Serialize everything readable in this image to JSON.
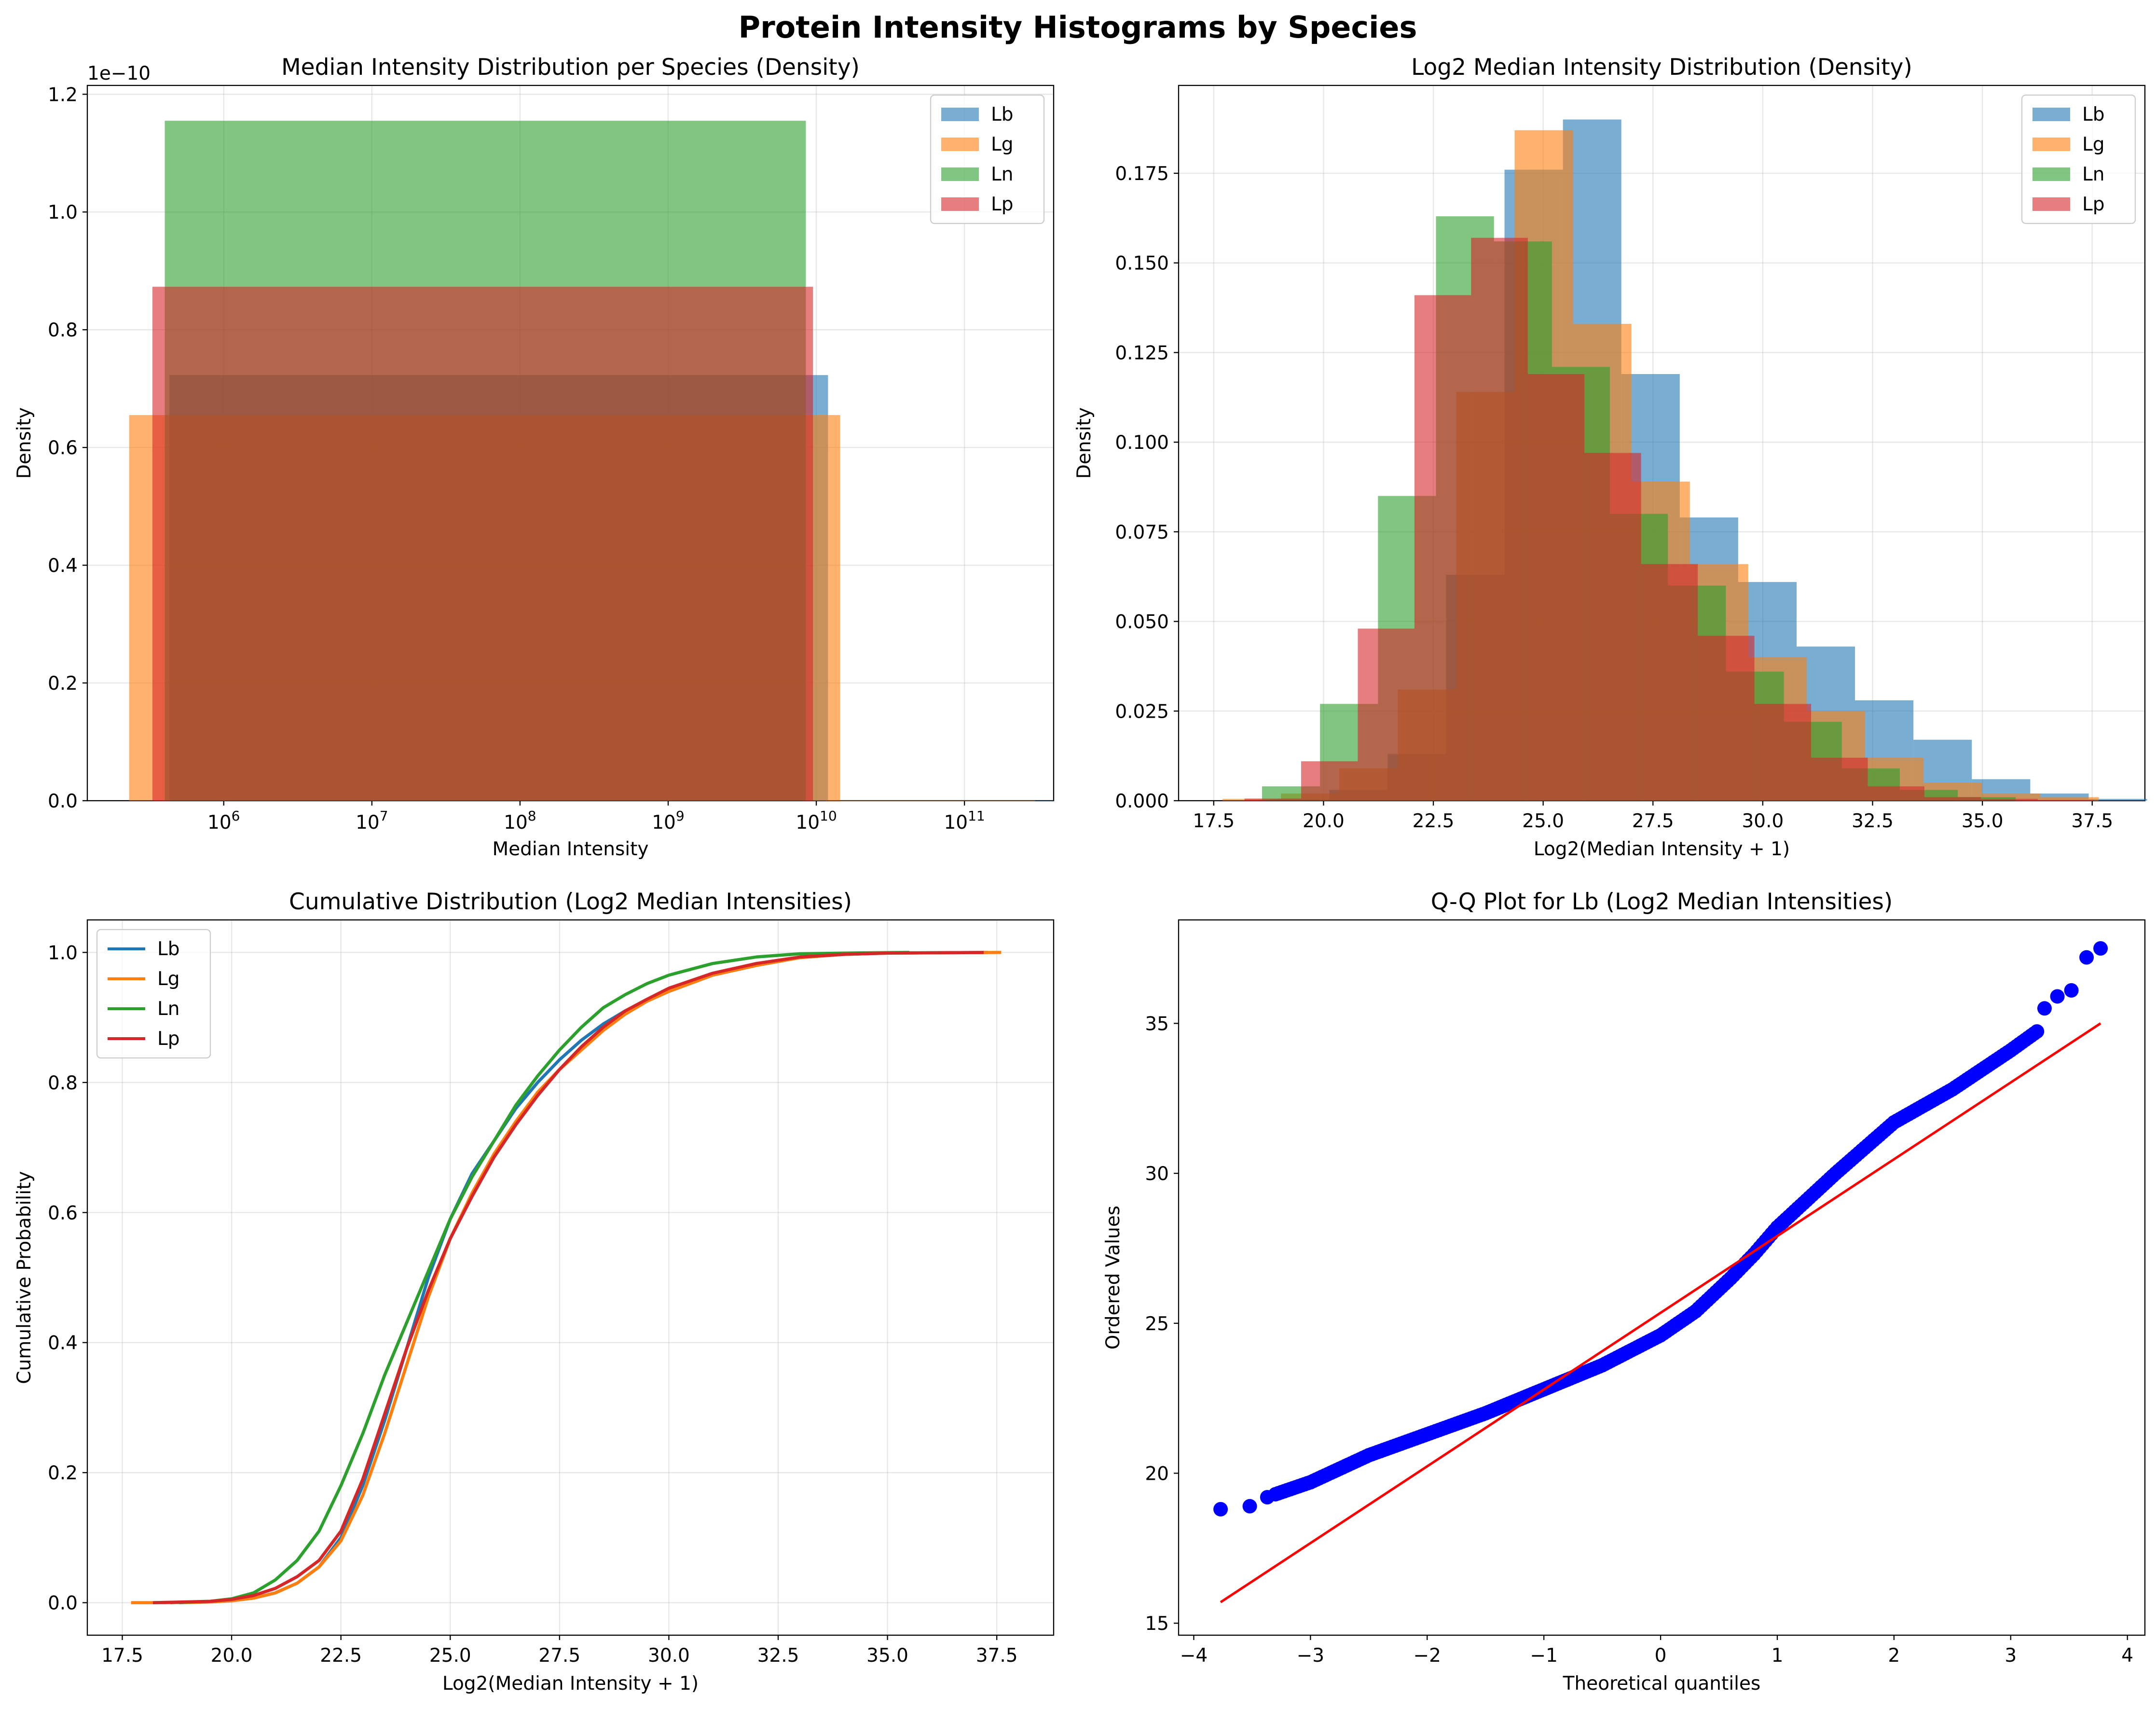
{
  "figure": {
    "title": "Protein Intensity Histograms by Species"
  },
  "colors": {
    "Lb": "#1f77b4",
    "Lg": "#ff7f0e",
    "Ln": "#2ca02c",
    "Lp": "#d62728"
  },
  "chart_data": [
    {
      "id": "p1",
      "type": "bar",
      "title": "Median Intensity Distribution per Species (Density)",
      "xlabel": "Median Intensity",
      "ylabel": "Density",
      "xscale": "log",
      "xlim": [
        120000,
        400000000000
      ],
      "ylim": [
        0,
        1.215e-10
      ],
      "y_offset_text": "1e−10",
      "xticks": [
        {
          "v": 1000000,
          "base": "10",
          "exp": "6"
        },
        {
          "v": 10000000,
          "base": "10",
          "exp": "7"
        },
        {
          "v": 100000000,
          "base": "10",
          "exp": "8"
        },
        {
          "v": 1000000000,
          "base": "10",
          "exp": "9"
        },
        {
          "v": 10000000000,
          "base": "10",
          "exp": "10"
        },
        {
          "v": 100000000000,
          "base": "10",
          "exp": "11"
        }
      ],
      "yticks": [
        {
          "v": 0,
          "label": "0.0"
        },
        {
          "v": 2e-11,
          "label": "0.2"
        },
        {
          "v": 4e-11,
          "label": "0.4"
        },
        {
          "v": 6e-11,
          "label": "0.6"
        },
        {
          "v": 8e-11,
          "label": "0.8"
        },
        {
          "v": 1e-10,
          "label": "1.0"
        },
        {
          "v": 1.2e-10,
          "label": "1.2"
        }
      ],
      "grid": true,
      "legend_position": "upper right",
      "series": [
        {
          "name": "Lb",
          "bins": [
            {
              "x0": 430000,
              "x1": 12000000000,
              "h": 7.23e-11
            },
            {
              "x0": 12000000000,
              "x1": 400000000000,
              "h": 3e-14
            }
          ]
        },
        {
          "name": "Lg",
          "bins": [
            {
              "x0": 230000,
              "x1": 14500000000,
              "h": 6.55e-11
            },
            {
              "x0": 14500000000,
              "x1": 300000000000,
              "h": 3e-14
            }
          ]
        },
        {
          "name": "Ln",
          "bins": [
            {
              "x0": 400000,
              "x1": 8500000000,
              "h": 1.155e-10
            }
          ]
        },
        {
          "name": "Lp",
          "bins": [
            {
              "x0": 330000,
              "x1": 9500000000,
              "h": 8.73e-11
            }
          ]
        }
      ]
    },
    {
      "id": "p2",
      "type": "bar",
      "title": "Log2 Median Intensity Distribution (Density)",
      "xlabel": "Log2(Median Intensity + 1)",
      "ylabel": "Density",
      "xlim": [
        16.7,
        38.7
      ],
      "ylim": [
        0,
        0.1995
      ],
      "xticks": [
        {
          "v": 17.5,
          "label": "17.5"
        },
        {
          "v": 20,
          "label": "20.0"
        },
        {
          "v": 22.5,
          "label": "22.5"
        },
        {
          "v": 25,
          "label": "25.0"
        },
        {
          "v": 27.5,
          "label": "27.5"
        },
        {
          "v": 30,
          "label": "30.0"
        },
        {
          "v": 32.5,
          "label": "32.5"
        },
        {
          "v": 35,
          "label": "35.0"
        },
        {
          "v": 37.5,
          "label": "37.5"
        }
      ],
      "yticks": [
        {
          "v": 0,
          "label": "0.000"
        },
        {
          "v": 0.025,
          "label": "0.025"
        },
        {
          "v": 0.05,
          "label": "0.050"
        },
        {
          "v": 0.075,
          "label": "0.075"
        },
        {
          "v": 0.1,
          "label": "0.100"
        },
        {
          "v": 0.125,
          "label": "0.125"
        },
        {
          "v": 0.15,
          "label": "0.150"
        },
        {
          "v": 0.175,
          "label": "0.175"
        }
      ],
      "grid": true,
      "legend_position": "upper right",
      "series": [
        {
          "name": "Lb",
          "start": 18.8,
          "width": 1.33,
          "values": [
            0.0004,
            0.003,
            0.013,
            0.063,
            0.176,
            0.19,
            0.119,
            0.079,
            0.061,
            0.043,
            0.028,
            0.017,
            0.006,
            0.002,
            0.0005
          ]
        },
        {
          "name": "Lg",
          "start": 17.7,
          "width": 1.33,
          "values": [
            0.0005,
            0.002,
            0.009,
            0.031,
            0.114,
            0.187,
            0.133,
            0.089,
            0.066,
            0.04,
            0.025,
            0.012,
            0.005,
            0.002,
            0.001
          ]
        },
        {
          "name": "Ln",
          "start": 18.6,
          "width": 1.32,
          "values": [
            0.004,
            0.027,
            0.085,
            0.163,
            0.156,
            0.121,
            0.08,
            0.06,
            0.036,
            0.022,
            0.009,
            0.003,
            0.001
          ]
        },
        {
          "name": "Lp",
          "start": 18.2,
          "width": 1.29,
          "values": [
            0.0006,
            0.011,
            0.048,
            0.141,
            0.157,
            0.119,
            0.097,
            0.066,
            0.046,
            0.027,
            0.012,
            0.004,
            0.001,
            0.0005,
            0.0002
          ]
        }
      ]
    },
    {
      "id": "p3",
      "type": "line",
      "title": "Cumulative Distribution (Log2 Median Intensities)",
      "xlabel": "Log2(Median Intensity + 1)",
      "ylabel": "Cumulative Probability",
      "xlim": [
        16.7,
        38.8
      ],
      "ylim": [
        -0.05,
        1.05
      ],
      "xticks": [
        {
          "v": 17.5,
          "label": "17.5"
        },
        {
          "v": 20,
          "label": "20.0"
        },
        {
          "v": 22.5,
          "label": "22.5"
        },
        {
          "v": 25,
          "label": "25.0"
        },
        {
          "v": 27.5,
          "label": "27.5"
        },
        {
          "v": 30,
          "label": "30.0"
        },
        {
          "v": 32.5,
          "label": "32.5"
        },
        {
          "v": 35,
          "label": "35.0"
        },
        {
          "v": 37.5,
          "label": "37.5"
        }
      ],
      "yticks": [
        {
          "v": 0,
          "label": "0.0"
        },
        {
          "v": 0.2,
          "label": "0.2"
        },
        {
          "v": 0.4,
          "label": "0.4"
        },
        {
          "v": 0.6,
          "label": "0.6"
        },
        {
          "v": 0.8,
          "label": "0.8"
        },
        {
          "v": 1.0,
          "label": "1.0"
        }
      ],
      "grid": true,
      "legend_position": "upper left",
      "series": [
        {
          "name": "Lb",
          "x": [
            18.8,
            19.5,
            20,
            20.5,
            21,
            21.5,
            22,
            22.5,
            23,
            23.5,
            24,
            24.5,
            25,
            25.5,
            26,
            26.5,
            27,
            27.5,
            28,
            28.5,
            29,
            29.5,
            30,
            31,
            32,
            33,
            34,
            35,
            37.3
          ],
          "y": [
            0.0,
            0.001,
            0.003,
            0.007,
            0.015,
            0.03,
            0.055,
            0.1,
            0.18,
            0.28,
            0.39,
            0.5,
            0.59,
            0.66,
            0.71,
            0.76,
            0.8,
            0.835,
            0.865,
            0.89,
            0.91,
            0.925,
            0.94,
            0.965,
            0.98,
            0.992,
            0.997,
            0.999,
            1.0
          ]
        },
        {
          "name": "Lg",
          "x": [
            17.7,
            18.5,
            19.5,
            20,
            20.5,
            21,
            21.5,
            22,
            22.5,
            23,
            23.5,
            24,
            24.5,
            25,
            25.5,
            26,
            26.5,
            27,
            27.5,
            28,
            28.5,
            29,
            29.5,
            30,
            31,
            32,
            33,
            34,
            35,
            37.6
          ],
          "y": [
            0.0,
            0.0,
            0.001,
            0.003,
            0.007,
            0.015,
            0.03,
            0.055,
            0.095,
            0.165,
            0.26,
            0.365,
            0.47,
            0.56,
            0.63,
            0.69,
            0.74,
            0.785,
            0.82,
            0.85,
            0.88,
            0.905,
            0.925,
            0.94,
            0.965,
            0.98,
            0.992,
            0.997,
            0.999,
            1.0
          ]
        },
        {
          "name": "Ln",
          "x": [
            18.6,
            19.5,
            20,
            20.5,
            21,
            21.5,
            22,
            22.5,
            23,
            23.5,
            24,
            24.5,
            25,
            25.5,
            26,
            26.5,
            27,
            27.5,
            28,
            28.5,
            29,
            29.5,
            30,
            31,
            32,
            33,
            34,
            35.5
          ],
          "y": [
            0.0,
            0.002,
            0.006,
            0.015,
            0.035,
            0.065,
            0.11,
            0.18,
            0.26,
            0.35,
            0.43,
            0.51,
            0.59,
            0.655,
            0.71,
            0.765,
            0.81,
            0.85,
            0.885,
            0.915,
            0.935,
            0.952,
            0.965,
            0.983,
            0.993,
            0.998,
            0.999,
            1.0
          ]
        },
        {
          "name": "Lp",
          "x": [
            18.2,
            19.5,
            20,
            20.5,
            21,
            21.5,
            22,
            22.5,
            23,
            23.5,
            24,
            24.5,
            25,
            25.5,
            26,
            26.5,
            27,
            27.5,
            28,
            28.5,
            29,
            29.5,
            30,
            31,
            32,
            33,
            34,
            35,
            37.2
          ],
          "y": [
            0.0,
            0.002,
            0.005,
            0.011,
            0.022,
            0.04,
            0.065,
            0.11,
            0.19,
            0.29,
            0.39,
            0.48,
            0.56,
            0.625,
            0.685,
            0.735,
            0.78,
            0.82,
            0.855,
            0.885,
            0.91,
            0.928,
            0.945,
            0.968,
            0.983,
            0.993,
            0.997,
            0.999,
            1.0
          ]
        }
      ]
    },
    {
      "id": "p4",
      "type": "scatter",
      "title": "Q-Q Plot for Lb (Log2 Median Intensities)",
      "xlabel": "Theoretical quantiles",
      "ylabel": "Ordered Values",
      "xlim": [
        -4.13,
        4.15
      ],
      "ylim": [
        14.6,
        38.45
      ],
      "xticks": [
        {
          "v": -4,
          "label": "−4"
        },
        {
          "v": -3,
          "label": "−3"
        },
        {
          "v": -2,
          "label": "−2"
        },
        {
          "v": -1,
          "label": "−1"
        },
        {
          "v": 0,
          "label": "0"
        },
        {
          "v": 1,
          "label": "1"
        },
        {
          "v": 2,
          "label": "2"
        },
        {
          "v": 3,
          "label": "3"
        },
        {
          "v": 4,
          "label": "4"
        }
      ],
      "yticks": [
        {
          "v": 15,
          "label": "15"
        },
        {
          "v": 20,
          "label": "20"
        },
        {
          "v": 25,
          "label": "25"
        },
        {
          "v": 30,
          "label": "30"
        },
        {
          "v": 35,
          "label": "35"
        }
      ],
      "grid": false,
      "fit_line": {
        "x": [
          -3.77,
          3.77
        ],
        "y": [
          15.7,
          35.0
        ]
      },
      "outliers": [
        {
          "x": -3.77,
          "y": 18.8
        },
        {
          "x": -3.52,
          "y": 18.9
        },
        {
          "x": -3.37,
          "y": 19.2
        },
        {
          "x": 3.29,
          "y": 35.5
        },
        {
          "x": 3.4,
          "y": 35.9
        },
        {
          "x": 3.52,
          "y": 36.1
        },
        {
          "x": 3.65,
          "y": 37.2
        },
        {
          "x": 3.77,
          "y": 37.5
        }
      ],
      "curve": [
        {
          "x": -3.3,
          "y": 19.3
        },
        {
          "x": -3.0,
          "y": 19.7
        },
        {
          "x": -2.5,
          "y": 20.6
        },
        {
          "x": -2.0,
          "y": 21.3
        },
        {
          "x": -1.5,
          "y": 22.0
        },
        {
          "x": -1.0,
          "y": 22.8
        },
        {
          "x": -0.5,
          "y": 23.6
        },
        {
          "x": 0.0,
          "y": 24.6
        },
        {
          "x": 0.3,
          "y": 25.4
        },
        {
          "x": 0.6,
          "y": 26.5
        },
        {
          "x": 0.8,
          "y": 27.3
        },
        {
          "x": 1.0,
          "y": 28.2
        },
        {
          "x": 1.5,
          "y": 30.0
        },
        {
          "x": 2.0,
          "y": 31.7
        },
        {
          "x": 2.5,
          "y": 32.8
        },
        {
          "x": 3.0,
          "y": 34.1
        },
        {
          "x": 3.25,
          "y": 34.8
        }
      ]
    }
  ]
}
